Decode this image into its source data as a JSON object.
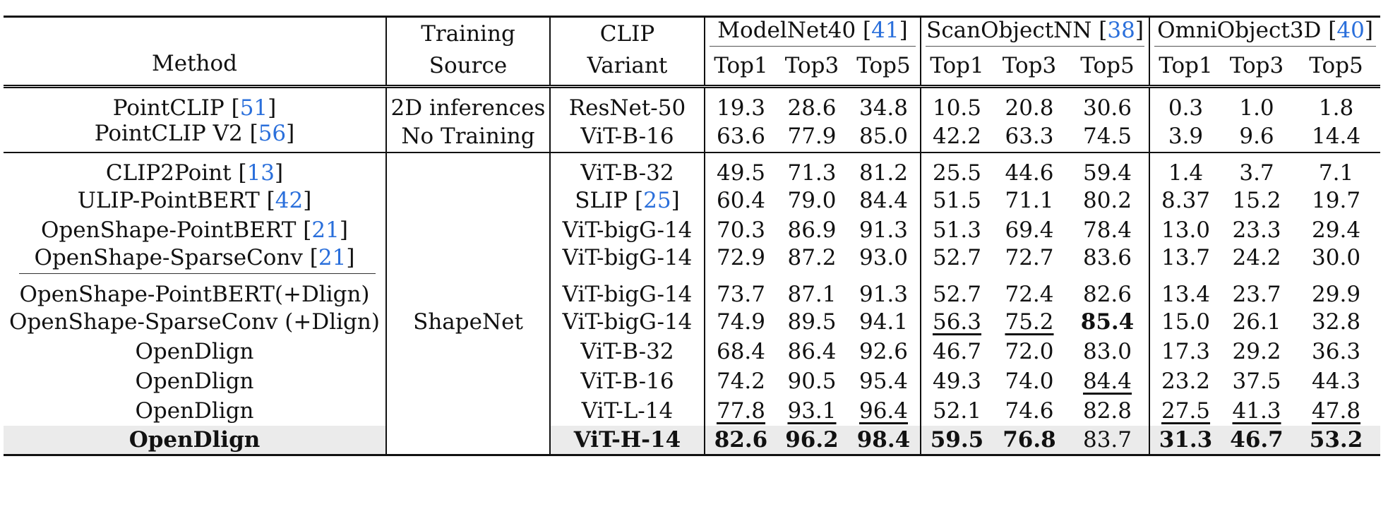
{
  "header": {
    "method": "Method",
    "training_top": "Training",
    "training_bottom": "Source",
    "clip_top": "CLIP",
    "clip_bottom": "Variant",
    "groups": [
      {
        "name": "ModelNet40",
        "ref": "41"
      },
      {
        "name": "ScanObjectNN",
        "ref": "38"
      },
      {
        "name": "OmniObject3D",
        "ref": "40"
      }
    ],
    "metrics": [
      "Top1",
      "Top3",
      "Top5",
      "Top1",
      "Top3",
      "Top5",
      "Top1",
      "Top3",
      "Top5"
    ]
  },
  "block1": {
    "source_1": "2D inferences",
    "source_2": "No Training",
    "rows": [
      {
        "method": "PointCLIP",
        "ref": "51",
        "clip": "ResNet-50",
        "vals": [
          "19.3",
          "28.6",
          "34.8",
          "10.5",
          "20.8",
          "30.6",
          "0.3",
          "1.0",
          "1.8"
        ]
      },
      {
        "method": "PointCLIP V2",
        "ref": "56",
        "clip": "ViT-B-16",
        "vals": [
          "63.6",
          "77.9",
          "85.0",
          "42.2",
          "63.3",
          "74.5",
          "3.9",
          "9.6",
          "14.4"
        ]
      }
    ]
  },
  "block2": {
    "source": "ShapeNet",
    "rows": [
      {
        "method": "CLIP2Point",
        "ref": "13",
        "clip": "ViT-B-32",
        "clip_ref": "",
        "vals": [
          "49.5",
          "71.3",
          "81.2",
          "25.5",
          "44.6",
          "59.4",
          "1.4",
          "3.7",
          "7.1"
        ]
      },
      {
        "method": "ULIP-PointBERT",
        "ref": "42",
        "clip": "SLIP",
        "clip_ref": "25",
        "vals": [
          "60.4",
          "79.0",
          "84.4",
          "51.5",
          "71.1",
          "80.2",
          "8.37",
          "15.2",
          "19.7"
        ]
      },
      {
        "method": "OpenShape-PointBERT",
        "ref": "21",
        "clip": "ViT-bigG-14",
        "clip_ref": "",
        "vals": [
          "70.3",
          "86.9",
          "91.3",
          "51.3",
          "69.4",
          "78.4",
          "13.0",
          "23.3",
          "29.4"
        ]
      },
      {
        "method": "OpenShape-SparseConv",
        "ref": "21",
        "clip": "ViT-bigG-14",
        "clip_ref": "",
        "vals": [
          "72.9",
          "87.2",
          "93.0",
          "52.7",
          "72.7",
          "83.6",
          "13.7",
          "24.2",
          "30.0"
        ]
      },
      {
        "method": "OpenShape-PointBERT(+Dlign)",
        "ref": "",
        "clip": "ViT-bigG-14",
        "clip_ref": "",
        "vals": [
          "73.7",
          "87.1",
          "91.3",
          "52.7",
          "72.4",
          "82.6",
          "13.4",
          "23.7",
          "29.9"
        ]
      },
      {
        "method": "OpenShape-SparseConv (+Dlign)",
        "ref": "",
        "clip": "ViT-bigG-14",
        "clip_ref": "",
        "vals": [
          "74.9",
          "89.5",
          "94.1",
          "56.3",
          "75.2",
          "85.4",
          "15.0",
          "26.1",
          "32.8"
        ]
      },
      {
        "method": "OpenDlign",
        "ref": "",
        "clip": "ViT-B-32",
        "clip_ref": "",
        "vals": [
          "68.4",
          "86.4",
          "92.6",
          "46.7",
          "72.0",
          "83.0",
          "17.3",
          "29.2",
          "36.3"
        ]
      },
      {
        "method": "OpenDlign",
        "ref": "",
        "clip": "ViT-B-16",
        "clip_ref": "",
        "vals": [
          "74.2",
          "90.5",
          "95.4",
          "49.3",
          "74.0",
          "84.4",
          "23.2",
          "37.5",
          "44.3"
        ]
      },
      {
        "method": "OpenDlign",
        "ref": "",
        "clip": "ViT-L-14",
        "clip_ref": "",
        "vals": [
          "77.8",
          "93.1",
          "96.4",
          "52.1",
          "74.6",
          "82.8",
          "27.5",
          "41.3",
          "47.8"
        ]
      },
      {
        "method": "OpenDlign",
        "ref": "",
        "clip": "ViT-H-14",
        "clip_ref": "",
        "vals": [
          "82.6",
          "96.2",
          "98.4",
          "59.5",
          "76.8",
          "83.7",
          "31.3",
          "46.7",
          "53.2"
        ]
      }
    ]
  },
  "style": {
    "ref_color": "#2a6fdb",
    "highlight_bg": "#ebebeb"
  }
}
